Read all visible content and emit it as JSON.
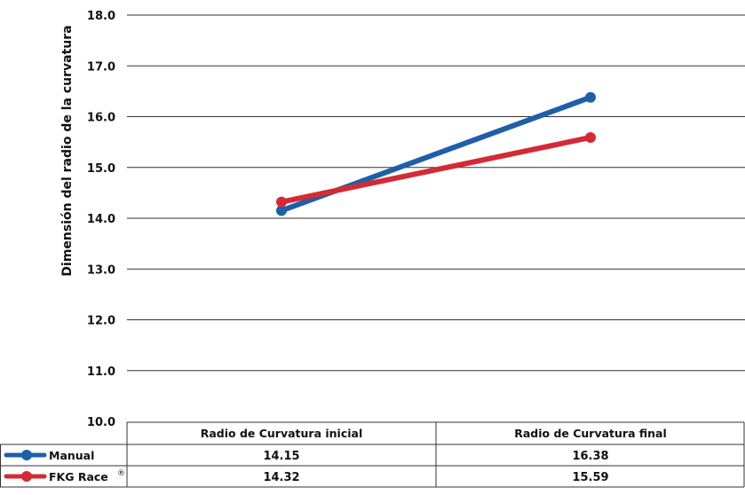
{
  "chart_data": {
    "type": "line",
    "ylabel": "Dimensión del radio de la curvatura",
    "xlabel": "",
    "categories": [
      "Radio de Curvatura inicial",
      "Radio de Curvatura final"
    ],
    "ylim": [
      10.0,
      18.0
    ],
    "yticks": [
      "10.0",
      "11.0",
      "12.0",
      "13.0",
      "14.0",
      "15.0",
      "16.0",
      "17.0",
      "18.0"
    ],
    "grid": true,
    "legend": "data-table-below",
    "series": [
      {
        "name": "Manual",
        "color": "#1f5fa6",
        "values": [
          14.15,
          16.38
        ],
        "labels": [
          "14.15",
          "16.38"
        ]
      },
      {
        "name": "FKG Race",
        "marker": "®",
        "color": "#d42a36",
        "values": [
          14.32,
          15.59
        ],
        "labels": [
          "14.32",
          "15.59"
        ]
      }
    ]
  }
}
